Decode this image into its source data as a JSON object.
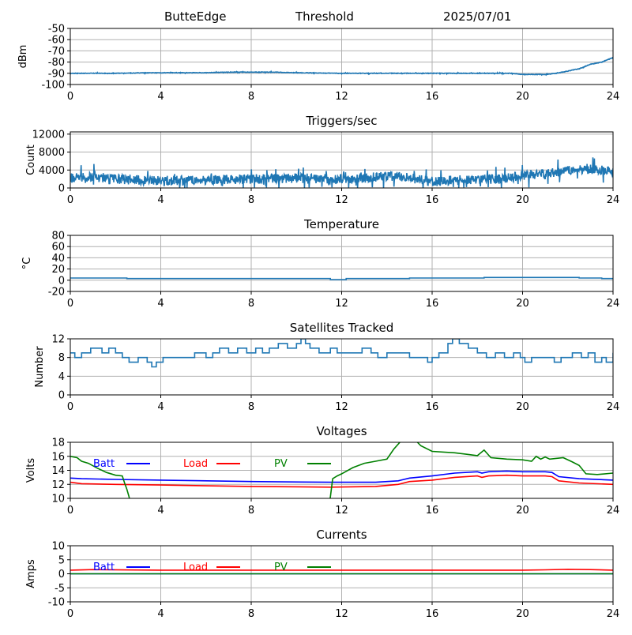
{
  "header": {
    "station": "ButteEdge",
    "product": "Threshold",
    "date": "2025/07/01"
  },
  "colors": {
    "series": "#1f77b4",
    "grid": "#b0b0b0",
    "batt": "#0000ff",
    "load": "#ff0000",
    "pv": "#008000"
  },
  "chart_data": [
    {
      "type": "line",
      "title": "",
      "xlabel": "",
      "ylabel": "dBm",
      "xlim": [
        0,
        24
      ],
      "ylim": [
        -100,
        -50
      ],
      "xticks": [
        0,
        4,
        8,
        12,
        16,
        20,
        24
      ],
      "yticks": [
        -100,
        -90,
        -80,
        -70,
        -60,
        -50
      ],
      "grid": true,
      "series": [
        {
          "color": "#1f77b4",
          "noise": 0.4,
          "x": [
            0,
            2,
            4,
            6,
            7,
            9,
            10,
            12,
            14,
            16,
            18,
            19.5,
            20,
            21,
            21.5,
            22,
            22.5,
            23,
            23.5,
            24
          ],
          "y": [
            -90,
            -90,
            -89.5,
            -89.5,
            -89,
            -89,
            -89.5,
            -90,
            -90,
            -90,
            -90,
            -90,
            -91,
            -91,
            -90,
            -88,
            -86,
            -82,
            -80,
            -76
          ]
        }
      ]
    },
    {
      "type": "line",
      "title": "Triggers/sec",
      "xlabel": "",
      "ylabel": "Count",
      "xlim": [
        0,
        24
      ],
      "ylim": [
        0,
        12500
      ],
      "xticks": [
        0,
        4,
        8,
        12,
        16,
        20,
        24
      ],
      "yticks": [
        0,
        4000,
        8000,
        12000
      ],
      "grid": true,
      "series": [
        {
          "color": "#1f77b4",
          "noise": 1800,
          "x": [
            0,
            1,
            2,
            3,
            4,
            6,
            8,
            10,
            12,
            14,
            15,
            16,
            18,
            19,
            19.5,
            20,
            21,
            22,
            23,
            24
          ],
          "y": [
            2200,
            2500,
            2000,
            1800,
            1600,
            1800,
            2000,
            2200,
            1900,
            2600,
            2300,
            1500,
            1900,
            2000,
            2300,
            2800,
            3300,
            3800,
            4200,
            3600
          ]
        }
      ]
    },
    {
      "type": "line",
      "title": "Temperature",
      "xlabel": "",
      "ylabel": "°C",
      "xlim": [
        0,
        24
      ],
      "ylim": [
        -20,
        80
      ],
      "xticks": [
        0,
        4,
        8,
        12,
        16,
        20,
        24
      ],
      "yticks": [
        -20,
        0,
        20,
        40,
        60,
        80
      ],
      "grid": true,
      "series": [
        {
          "color": "#1f77b4",
          "x": [
            0,
            2.5,
            2.5,
            11.5,
            11.5,
            12.2,
            12.2,
            15,
            15,
            18.3,
            18.3,
            22.5,
            22.5,
            23.5,
            23.5,
            24
          ],
          "y": [
            4,
            4,
            3,
            3,
            1,
            1,
            3,
            3,
            4,
            4,
            5,
            5,
            4,
            4,
            3,
            3
          ]
        }
      ]
    },
    {
      "type": "line",
      "title": "Satellites Tracked",
      "xlabel": "",
      "ylabel": "Number",
      "xlim": [
        0,
        24
      ],
      "ylim": [
        0,
        12
      ],
      "xticks": [
        0,
        4,
        8,
        12,
        16,
        20,
        24
      ],
      "yticks": [
        0,
        4,
        8,
        12
      ],
      "grid": true,
      "series": [
        {
          "color": "#1f77b4",
          "x": [
            0,
            0.2,
            0.5,
            0.9,
            1.4,
            1.7,
            2.0,
            2.3,
            2.6,
            3.0,
            3.4,
            3.6,
            3.8,
            4.1,
            4.5,
            5.0,
            5.5,
            6.0,
            6.3,
            6.6,
            7.0,
            7.4,
            7.8,
            8.2,
            8.5,
            8.8,
            9.2,
            9.6,
            10.0,
            10.2,
            10.4,
            10.6,
            11.0,
            11.5,
            11.8,
            12.2,
            12.6,
            12.9,
            13.3,
            13.6,
            14.0,
            14.5,
            15.0,
            15.4,
            15.8,
            16.0,
            16.3,
            16.7,
            16.9,
            17.2,
            17.6,
            18.0,
            18.4,
            18.8,
            19.2,
            19.6,
            19.9,
            20.1,
            20.4,
            21.0,
            21.4,
            21.7,
            22.2,
            22.6,
            22.9,
            23.2,
            23.5,
            23.7,
            24
          ],
          "y": [
            9,
            8,
            9,
            10,
            9,
            10,
            9,
            8,
            7,
            8,
            7,
            6,
            7,
            8,
            8,
            8,
            9,
            8,
            9,
            10,
            9,
            10,
            9,
            10,
            9,
            10,
            11,
            10,
            11,
            12,
            11,
            10,
            9,
            10,
            9,
            9,
            9,
            10,
            9,
            8,
            9,
            9,
            8,
            8,
            7,
            8,
            9,
            11,
            12,
            11,
            10,
            9,
            8,
            9,
            8,
            9,
            8,
            7,
            8,
            8,
            7,
            8,
            9,
            8,
            9,
            7,
            8,
            7,
            9
          ]
        }
      ]
    },
    {
      "type": "line",
      "title": "Voltages",
      "xlabel": "",
      "ylabel": "Volts",
      "xlim": [
        0,
        24
      ],
      "ylim": [
        10,
        18
      ],
      "xticks": [
        0,
        4,
        8,
        12,
        16,
        20,
        24
      ],
      "yticks": [
        10,
        12,
        14,
        16,
        18
      ],
      "grid": true,
      "legend_position": "upper-left",
      "series": [
        {
          "name": "Batt",
          "color": "#0000ff",
          "x": [
            0,
            0.5,
            2,
            4,
            8,
            11.5,
            13.5,
            14.5,
            15,
            16,
            17,
            18,
            18.2,
            18.5,
            19.3,
            20,
            21,
            21.3,
            21.6,
            22.5,
            24
          ],
          "y": [
            12.9,
            12.8,
            12.7,
            12.6,
            12.4,
            12.3,
            12.3,
            12.5,
            12.9,
            13.2,
            13.6,
            13.8,
            13.6,
            13.8,
            13.9,
            13.8,
            13.8,
            13.7,
            13.1,
            12.8,
            12.6
          ]
        },
        {
          "name": "Load",
          "color": "#ff0000",
          "x": [
            0,
            0.5,
            2,
            4,
            8,
            11.5,
            13.5,
            14.5,
            15,
            16,
            17,
            18,
            18.2,
            18.5,
            19.3,
            20,
            21,
            21.3,
            21.6,
            22.5,
            24
          ],
          "y": [
            12.3,
            12.1,
            12.0,
            11.9,
            11.7,
            11.6,
            11.7,
            12.0,
            12.4,
            12.6,
            13.0,
            13.2,
            13.0,
            13.2,
            13.3,
            13.2,
            13.2,
            13.1,
            12.5,
            12.2,
            12.0
          ]
        },
        {
          "name": "PV",
          "color": "#008000",
          "x": [
            0,
            0.3,
            0.5,
            0.8,
            1.2,
            1.6,
            2.0,
            2.3,
            2.4,
            2.5,
            2.6,
            2.7,
            11.4,
            11.5,
            11.6,
            11.8,
            12.0,
            12.5,
            13.0,
            13.5,
            14.0,
            14.3,
            14.6,
            14.8,
            15.2,
            15.5,
            16.0,
            17.0,
            17.5,
            18.0,
            18.3,
            18.6,
            19.3,
            20.0,
            20.4,
            20.6,
            20.8,
            21.0,
            21.2,
            21.8,
            22.2,
            22.5,
            22.8,
            23.3,
            24
          ],
          "y": [
            16.0,
            15.8,
            15.3,
            15.0,
            14.3,
            13.7,
            13.3,
            13.2,
            12.2,
            11.3,
            10.2,
            8.5,
            8.5,
            10.2,
            12.8,
            13.2,
            13.5,
            14.4,
            15.0,
            15.3,
            15.6,
            17.0,
            18.1,
            18.6,
            18.5,
            17.5,
            16.7,
            16.5,
            16.3,
            16.1,
            16.9,
            15.8,
            15.6,
            15.5,
            15.3,
            16.0,
            15.6,
            15.9,
            15.6,
            15.8,
            15.2,
            14.7,
            13.5,
            13.4,
            13.6
          ]
        }
      ]
    },
    {
      "type": "line",
      "title": "Currents",
      "xlabel": "",
      "ylabel": "Amps",
      "xlim": [
        0,
        24
      ],
      "ylim": [
        -10,
        10
      ],
      "xticks": [
        0,
        4,
        8,
        12,
        16,
        20,
        24
      ],
      "yticks": [
        -10,
        -5,
        0,
        5,
        10
      ],
      "grid": true,
      "legend_position": "upper-left",
      "series": [
        {
          "name": "Batt",
          "color": "#0000ff",
          "x": [
            0,
            24
          ],
          "y": [
            0,
            0
          ]
        },
        {
          "name": "Load",
          "color": "#ff0000",
          "x": [
            0,
            1,
            4,
            8,
            12,
            16,
            20,
            21,
            22,
            23,
            24
          ],
          "y": [
            1.3,
            1.5,
            1.3,
            1.3,
            1.3,
            1.3,
            1.3,
            1.4,
            1.6,
            1.5,
            1.3
          ]
        },
        {
          "name": "PV",
          "color": "#008000",
          "x": [
            0,
            24
          ],
          "y": [
            0,
            0
          ]
        }
      ]
    }
  ]
}
